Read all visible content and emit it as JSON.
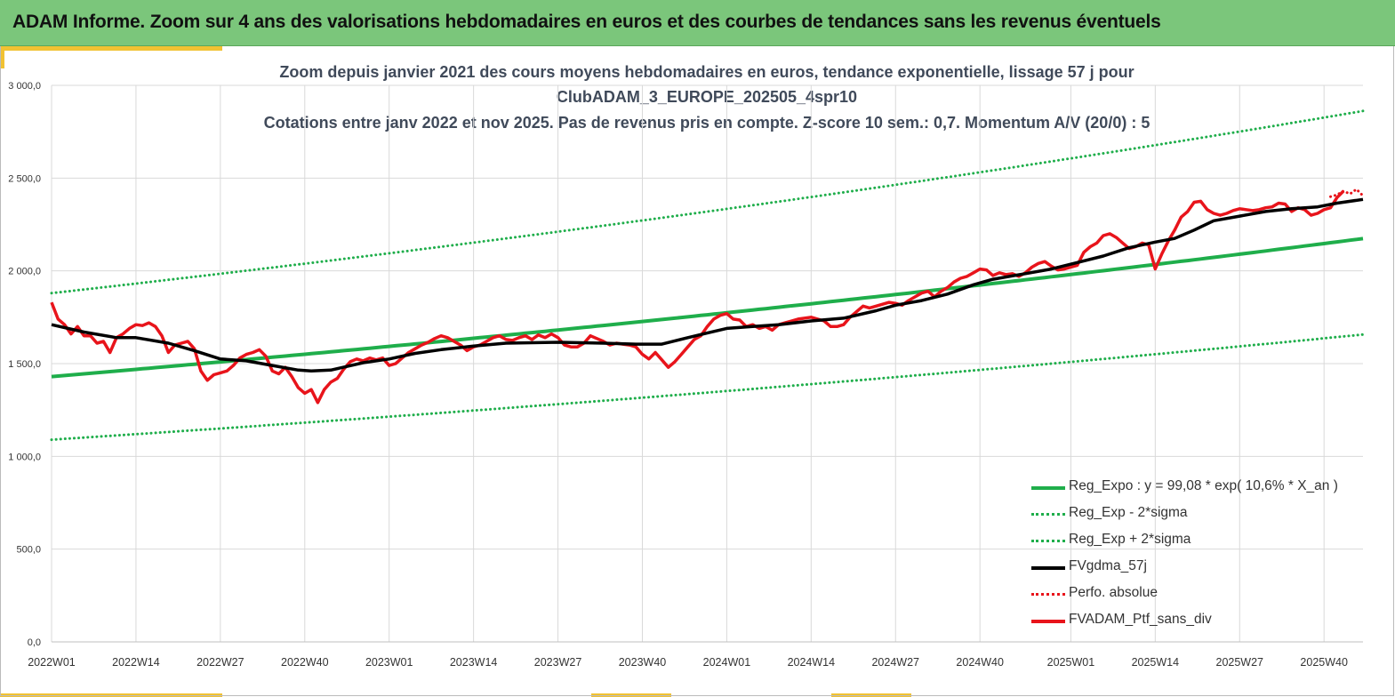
{
  "banner": {
    "title": "ADAM Informe. Zoom sur 4 ans des valorisations hebdomadaires en euros et des courbes de tendances sans les revenus éventuels"
  },
  "colors": {
    "banner_bg": "#7bc67b",
    "accent": "#f1c232",
    "reg": "#1fae4b",
    "sigma": "#1fae4b",
    "smooth": "#000000",
    "ptf": "#e8141b",
    "grid": "#d9d9d9"
  },
  "chart_data": {
    "type": "line",
    "title_lines": [
      "Zoom depuis janvier 2021 des cours moyens hebdomadaires  en euros, tendance exponentielle, lissage 57 j pour",
      "ClubADAM_3_EUROPE_202505_4spr10",
      "Cotations  entre janv 2022 et nov 2025. Pas de revenus pris en compte. Z-score 10 sem.: 0,7. Momentum  A/V (20/0) : 5"
    ],
    "ylim": [
      0,
      3000
    ],
    "yticks": [
      "0,0",
      "500,0",
      "1 000,0",
      "1 500,0",
      "2 000,0",
      "2 500,0",
      "3 000,0"
    ],
    "ytick_values": [
      0,
      500,
      1000,
      1500,
      2000,
      2500,
      3000
    ],
    "n_weeks": 200,
    "xticks": [
      {
        "week": 0,
        "label": "2022W01"
      },
      {
        "week": 13,
        "label": "2022W14"
      },
      {
        "week": 26,
        "label": "2022W27"
      },
      {
        "week": 39,
        "label": "2022W40"
      },
      {
        "week": 52,
        "label": "2023W01"
      },
      {
        "week": 65,
        "label": "2023W14"
      },
      {
        "week": 78,
        "label": "2023W27"
      },
      {
        "week": 91,
        "label": "2023W40"
      },
      {
        "week": 104,
        "label": "2024W01"
      },
      {
        "week": 117,
        "label": "2024W14"
      },
      {
        "week": 130,
        "label": "2024W27"
      },
      {
        "week": 143,
        "label": "2024W40"
      },
      {
        "week": 157,
        "label": "2025W01"
      },
      {
        "week": 170,
        "label": "2025W14"
      },
      {
        "week": 183,
        "label": "2025W27"
      },
      {
        "week": 196,
        "label": "2025W40"
      }
    ],
    "regression": {
      "name": "Reg_Expo : y = 99,08 * exp( 10,6% *  X_an )",
      "start": 1430,
      "end": 2165
    },
    "sigma_minus": {
      "name": "Reg_Exp - 2*sigma",
      "start": 1090,
      "end": 1650
    },
    "sigma_plus": {
      "name": "Reg_Exp + 2*sigma",
      "start": 1880,
      "end": 2850
    },
    "smoothed": {
      "name": "FVgdma_57j",
      "points": [
        [
          0,
          1710
        ],
        [
          5,
          1670
        ],
        [
          10,
          1640
        ],
        [
          13,
          1640
        ],
        [
          18,
          1610
        ],
        [
          22,
          1570
        ],
        [
          26,
          1525
        ],
        [
          30,
          1515
        ],
        [
          34,
          1490
        ],
        [
          38,
          1465
        ],
        [
          40,
          1460
        ],
        [
          43,
          1465
        ],
        [
          48,
          1505
        ],
        [
          52,
          1525
        ],
        [
          56,
          1555
        ],
        [
          60,
          1575
        ],
        [
          65,
          1595
        ],
        [
          70,
          1610
        ],
        [
          78,
          1615
        ],
        [
          85,
          1610
        ],
        [
          90,
          1605
        ],
        [
          94,
          1605
        ],
        [
          98,
          1640
        ],
        [
          101,
          1665
        ],
        [
          104,
          1690
        ],
        [
          108,
          1700
        ],
        [
          112,
          1710
        ],
        [
          117,
          1730
        ],
        [
          122,
          1745
        ],
        [
          127,
          1785
        ],
        [
          130,
          1815
        ],
        [
          134,
          1840
        ],
        [
          138,
          1875
        ],
        [
          142,
          1925
        ],
        [
          145,
          1955
        ],
        [
          150,
          1985
        ],
        [
          154,
          2010
        ],
        [
          158,
          2045
        ],
        [
          162,
          2080
        ],
        [
          166,
          2125
        ],
        [
          170,
          2155
        ],
        [
          173,
          2175
        ],
        [
          176,
          2220
        ],
        [
          179,
          2270
        ],
        [
          183,
          2295
        ],
        [
          187,
          2320
        ],
        [
          191,
          2335
        ],
        [
          195,
          2345
        ],
        [
          198,
          2365
        ],
        [
          202,
          2385
        ]
      ]
    },
    "ptf": {
      "name": "FVADAM_Ptf_sans_div",
      "points": [
        [
          0,
          1830
        ],
        [
          1,
          1740
        ],
        [
          2,
          1710
        ],
        [
          3,
          1660
        ],
        [
          4,
          1700
        ],
        [
          5,
          1650
        ],
        [
          6,
          1650
        ],
        [
          7,
          1610
        ],
        [
          8,
          1620
        ],
        [
          9,
          1560
        ],
        [
          10,
          1640
        ],
        [
          11,
          1660
        ],
        [
          12,
          1690
        ],
        [
          13,
          1710
        ],
        [
          14,
          1705
        ],
        [
          15,
          1720
        ],
        [
          16,
          1700
        ],
        [
          17,
          1650
        ],
        [
          18,
          1560
        ],
        [
          19,
          1600
        ],
        [
          20,
          1610
        ],
        [
          21,
          1620
        ],
        [
          22,
          1580
        ],
        [
          23,
          1460
        ],
        [
          24,
          1410
        ],
        [
          25,
          1440
        ],
        [
          26,
          1450
        ],
        [
          27,
          1460
        ],
        [
          28,
          1490
        ],
        [
          29,
          1530
        ],
        [
          30,
          1550
        ],
        [
          31,
          1560
        ],
        [
          32,
          1575
        ],
        [
          33,
          1540
        ],
        [
          34,
          1460
        ],
        [
          35,
          1445
        ],
        [
          36,
          1480
        ],
        [
          37,
          1430
        ],
        [
          38,
          1370
        ],
        [
          39,
          1340
        ],
        [
          40,
          1360
        ],
        [
          41,
          1290
        ],
        [
          42,
          1360
        ],
        [
          43,
          1400
        ],
        [
          44,
          1420
        ],
        [
          45,
          1470
        ],
        [
          46,
          1510
        ],
        [
          47,
          1525
        ],
        [
          48,
          1515
        ],
        [
          49,
          1530
        ],
        [
          50,
          1520
        ],
        [
          51,
          1530
        ],
        [
          52,
          1490
        ],
        [
          53,
          1500
        ],
        [
          54,
          1530
        ],
        [
          55,
          1560
        ],
        [
          56,
          1580
        ],
        [
          57,
          1600
        ],
        [
          58,
          1615
        ],
        [
          59,
          1635
        ],
        [
          60,
          1650
        ],
        [
          61,
          1640
        ],
        [
          62,
          1620
        ],
        [
          63,
          1600
        ],
        [
          64,
          1570
        ],
        [
          65,
          1590
        ],
        [
          66,
          1600
        ],
        [
          67,
          1620
        ],
        [
          68,
          1640
        ],
        [
          69,
          1650
        ],
        [
          70,
          1630
        ],
        [
          71,
          1625
        ],
        [
          72,
          1640
        ],
        [
          73,
          1650
        ],
        [
          74,
          1630
        ],
        [
          75,
          1655
        ],
        [
          76,
          1640
        ],
        [
          77,
          1660
        ],
        [
          78,
          1640
        ],
        [
          79,
          1600
        ],
        [
          80,
          1590
        ],
        [
          81,
          1590
        ],
        [
          82,
          1610
        ],
        [
          83,
          1650
        ],
        [
          84,
          1635
        ],
        [
          85,
          1620
        ],
        [
          86,
          1600
        ],
        [
          87,
          1610
        ],
        [
          88,
          1605
        ],
        [
          89,
          1600
        ],
        [
          90,
          1590
        ],
        [
          91,
          1550
        ],
        [
          92,
          1525
        ],
        [
          93,
          1560
        ],
        [
          94,
          1520
        ],
        [
          95,
          1480
        ],
        [
          96,
          1510
        ],
        [
          97,
          1550
        ],
        [
          98,
          1590
        ],
        [
          99,
          1630
        ],
        [
          100,
          1650
        ],
        [
          101,
          1700
        ],
        [
          102,
          1740
        ],
        [
          103,
          1760
        ],
        [
          104,
          1770
        ],
        [
          105,
          1740
        ],
        [
          106,
          1735
        ],
        [
          107,
          1700
        ],
        [
          108,
          1710
        ],
        [
          109,
          1690
        ],
        [
          110,
          1700
        ],
        [
          111,
          1680
        ],
        [
          112,
          1710
        ],
        [
          113,
          1720
        ],
        [
          114,
          1730
        ],
        [
          115,
          1740
        ],
        [
          116,
          1745
        ],
        [
          117,
          1750
        ],
        [
          118,
          1740
        ],
        [
          119,
          1730
        ],
        [
          120,
          1700
        ],
        [
          121,
          1700
        ],
        [
          122,
          1710
        ],
        [
          123,
          1750
        ],
        [
          124,
          1780
        ],
        [
          125,
          1810
        ],
        [
          126,
          1800
        ],
        [
          127,
          1810
        ],
        [
          128,
          1820
        ],
        [
          129,
          1830
        ],
        [
          130,
          1825
        ],
        [
          131,
          1815
        ],
        [
          132,
          1840
        ],
        [
          133,
          1860
        ],
        [
          134,
          1880
        ],
        [
          135,
          1890
        ],
        [
          136,
          1860
        ],
        [
          137,
          1890
        ],
        [
          138,
          1910
        ],
        [
          139,
          1940
        ],
        [
          140,
          1960
        ],
        [
          141,
          1970
        ],
        [
          142,
          1990
        ],
        [
          143,
          2010
        ],
        [
          144,
          2005
        ],
        [
          145,
          1975
        ],
        [
          146,
          1990
        ],
        [
          147,
          1980
        ],
        [
          148,
          1985
        ],
        [
          149,
          1970
        ],
        [
          150,
          1990
        ],
        [
          151,
          2020
        ],
        [
          152,
          2040
        ],
        [
          153,
          2050
        ],
        [
          154,
          2025
        ],
        [
          155,
          2005
        ],
        [
          156,
          2010
        ],
        [
          157,
          2020
        ],
        [
          158,
          2030
        ],
        [
          159,
          2100
        ],
        [
          160,
          2130
        ],
        [
          161,
          2150
        ],
        [
          162,
          2190
        ],
        [
          163,
          2200
        ],
        [
          164,
          2180
        ],
        [
          165,
          2150
        ],
        [
          166,
          2120
        ],
        [
          167,
          2130
        ],
        [
          168,
          2150
        ],
        [
          169,
          2140
        ],
        [
          170,
          2010
        ],
        [
          171,
          2090
        ],
        [
          172,
          2160
        ],
        [
          173,
          2220
        ],
        [
          174,
          2290
        ],
        [
          175,
          2320
        ],
        [
          176,
          2370
        ],
        [
          177,
          2375
        ],
        [
          178,
          2330
        ],
        [
          179,
          2310
        ],
        [
          180,
          2300
        ],
        [
          181,
          2310
        ],
        [
          182,
          2325
        ],
        [
          183,
          2335
        ],
        [
          184,
          2330
        ],
        [
          185,
          2325
        ],
        [
          186,
          2330
        ],
        [
          187,
          2340
        ],
        [
          188,
          2345
        ],
        [
          189,
          2365
        ],
        [
          190,
          2360
        ],
        [
          191,
          2320
        ],
        [
          192,
          2340
        ],
        [
          193,
          2330
        ],
        [
          194,
          2300
        ],
        [
          195,
          2310
        ],
        [
          196,
          2330
        ],
        [
          197,
          2340
        ],
        [
          198,
          2395
        ],
        [
          199,
          2430
        ]
      ]
    },
    "perf_abs": {
      "name": "Perfo. absolue",
      "points": [
        [
          197,
          2400
        ],
        [
          198,
          2410
        ],
        [
          199,
          2430
        ],
        [
          200,
          2415
        ],
        [
          201,
          2440
        ],
        [
          202,
          2405
        ]
      ]
    }
  }
}
